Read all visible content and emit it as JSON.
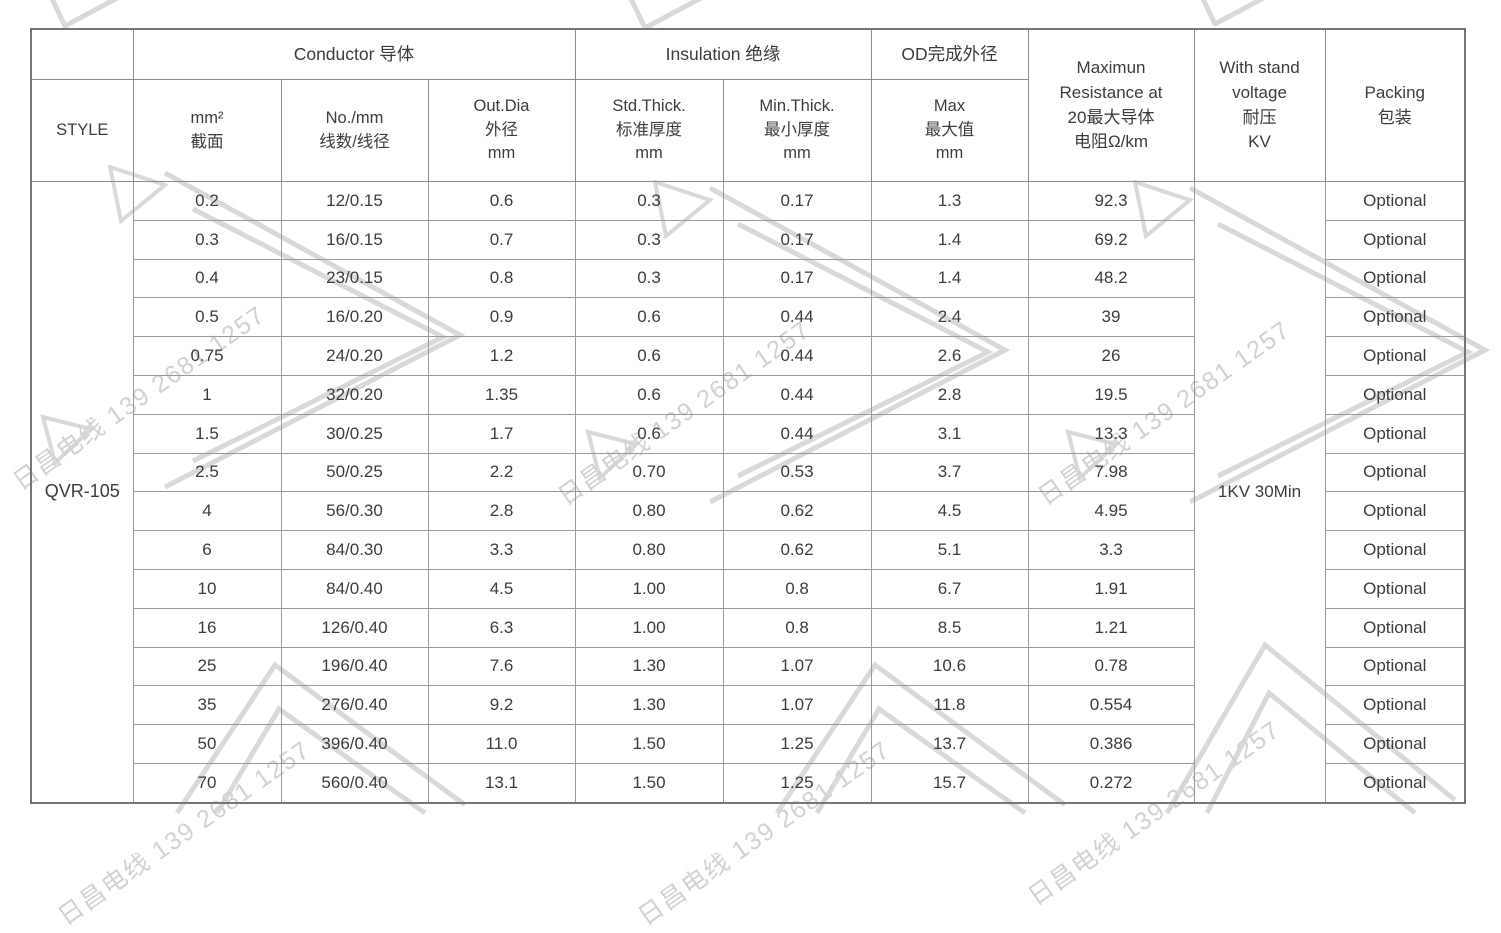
{
  "watermark": {
    "text": "日昌电线 139 2681 1257"
  },
  "table": {
    "style_header": "STYLE",
    "style_value": "QVR-105",
    "voltage_value": "1KV 30Min",
    "groups": {
      "conductor": "Conductor 导体",
      "insulation": "Insulation 绝缘",
      "od": "OD完成外径",
      "resistance": "Maximun\nResistance at\n20最大导体\n电阻Ω/km",
      "voltage": "With stand\nvoltage\n耐压\nKV",
      "packing": "Packing\n包装"
    },
    "subheaders": {
      "mm2": "mm²\n截面",
      "no_mm": "No./mm\n线数/线径",
      "out_dia": "Out.Dia\n外径\nmm",
      "std_thick": "Std.Thick.\n标准厚度\nmm",
      "min_thick": "Min.Thick.\n最小厚度\nmm",
      "max": "Max\n最大值\nmm"
    },
    "rows": [
      {
        "mm2": "0.2",
        "no_mm": "12/0.15",
        "out_dia": "0.6",
        "std_thick": "0.3",
        "min_thick": "0.17",
        "max": "1.3",
        "resistance": "92.3",
        "packing": "Optional"
      },
      {
        "mm2": "0.3",
        "no_mm": "16/0.15",
        "out_dia": "0.7",
        "std_thick": "0.3",
        "min_thick": "0.17",
        "max": "1.4",
        "resistance": "69.2",
        "packing": "Optional"
      },
      {
        "mm2": "0.4",
        "no_mm": "23/0.15",
        "out_dia": "0.8",
        "std_thick": "0.3",
        "min_thick": "0.17",
        "max": "1.4",
        "resistance": "48.2",
        "packing": "Optional"
      },
      {
        "mm2": "0.5",
        "no_mm": "16/0.20",
        "out_dia": "0.9",
        "std_thick": "0.6",
        "min_thick": "0.44",
        "max": "2.4",
        "resistance": "39",
        "packing": "Optional"
      },
      {
        "mm2": "0.75",
        "no_mm": "24/0.20",
        "out_dia": "1.2",
        "std_thick": "0.6",
        "min_thick": "0.44",
        "max": "2.6",
        "resistance": "26",
        "packing": "Optional"
      },
      {
        "mm2": "1",
        "no_mm": "32/0.20",
        "out_dia": "1.35",
        "std_thick": "0.6",
        "min_thick": "0.44",
        "max": "2.8",
        "resistance": "19.5",
        "packing": "Optional"
      },
      {
        "mm2": "1.5",
        "no_mm": "30/0.25",
        "out_dia": "1.7",
        "std_thick": "0.6",
        "min_thick": "0.44",
        "max": "3.1",
        "resistance": "13.3",
        "packing": "Optional"
      },
      {
        "mm2": "2.5",
        "no_mm": "50/0.25",
        "out_dia": "2.2",
        "std_thick": "0.70",
        "min_thick": "0.53",
        "max": "3.7",
        "resistance": "7.98",
        "packing": "Optional"
      },
      {
        "mm2": "4",
        "no_mm": "56/0.30",
        "out_dia": "2.8",
        "std_thick": "0.80",
        "min_thick": "0.62",
        "max": "4.5",
        "resistance": "4.95",
        "packing": "Optional"
      },
      {
        "mm2": "6",
        "no_mm": "84/0.30",
        "out_dia": "3.3",
        "std_thick": "0.80",
        "min_thick": "0.62",
        "max": "5.1",
        "resistance": "3.3",
        "packing": "Optional"
      },
      {
        "mm2": "10",
        "no_mm": "84/0.40",
        "out_dia": "4.5",
        "std_thick": "1.00",
        "min_thick": "0.8",
        "max": "6.7",
        "resistance": "1.91",
        "packing": "Optional"
      },
      {
        "mm2": "16",
        "no_mm": "126/0.40",
        "out_dia": "6.3",
        "std_thick": "1.00",
        "min_thick": "0.8",
        "max": "8.5",
        "resistance": "1.21",
        "packing": "Optional"
      },
      {
        "mm2": "25",
        "no_mm": "196/0.40",
        "out_dia": "7.6",
        "std_thick": "1.30",
        "min_thick": "1.07",
        "max": "10.6",
        "resistance": "0.78",
        "packing": "Optional"
      },
      {
        "mm2": "35",
        "no_mm": "276/0.40",
        "out_dia": "9.2",
        "std_thick": "1.30",
        "min_thick": "1.07",
        "max": "11.8",
        "resistance": "0.554",
        "packing": "Optional"
      },
      {
        "mm2": "50",
        "no_mm": "396/0.40",
        "out_dia": "11.0",
        "std_thick": "1.50",
        "min_thick": "1.25",
        "max": "13.7",
        "resistance": "0.386",
        "packing": "Optional"
      },
      {
        "mm2": "70",
        "no_mm": "560/0.40",
        "out_dia": "13.1",
        "std_thick": "1.50",
        "min_thick": "1.25",
        "max": "15.7",
        "resistance": "0.272",
        "packing": "Optional"
      }
    ]
  }
}
